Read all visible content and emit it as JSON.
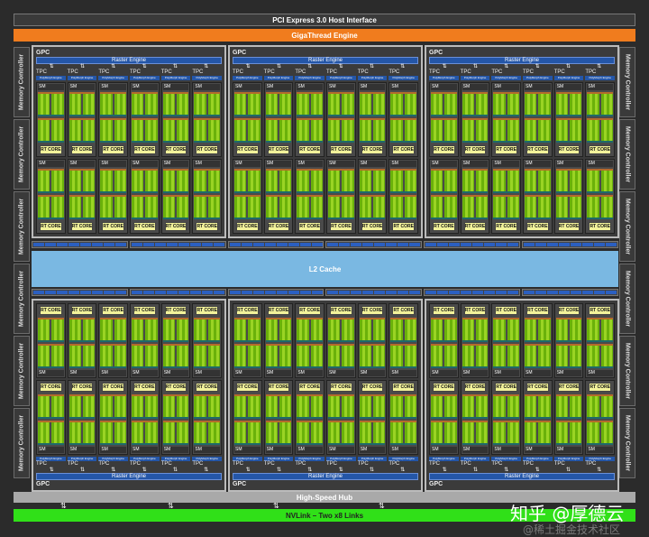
{
  "header": {
    "pci": "PCI Express 3.0 Host Interface",
    "gigathread": "GigaThread Engine"
  },
  "memory_controller": "Memory Controller",
  "gpc": {
    "label": "GPC",
    "raster": "Raster Engine",
    "tpc": "TPC",
    "polymorph": "PolyMorph Engine",
    "sm": "SM",
    "rt_core": "RT CORE",
    "tpc_count": 6,
    "sm_per_tpc": 2
  },
  "l2": "L2 Cache",
  "hub": "High-Speed Hub",
  "nvlink": "NVLink – Two x8 Links",
  "watermark": {
    "line1": "知乎 @厚德云",
    "line2": "@稀土掘金技术社区"
  },
  "colors": {
    "orange": "#f07c1e",
    "green": "#30e018",
    "l2": "#7ab8e2",
    "blue": "#2456a8"
  }
}
